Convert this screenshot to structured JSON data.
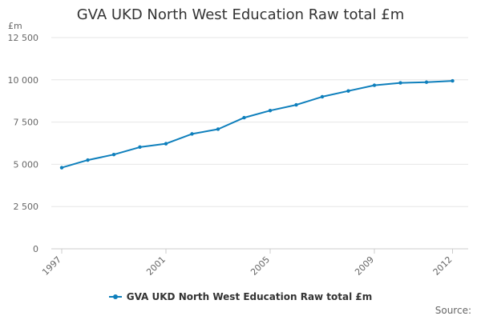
{
  "chart_data": {
    "type": "line",
    "title": "GVA UKD North West Education Raw total £m",
    "ylabel": "£m",
    "xlabel": "",
    "ylim": [
      0,
      12500
    ],
    "yticks": [
      0,
      2500,
      5000,
      7500,
      10000,
      12500
    ],
    "ytick_labels": [
      "0",
      "2 500",
      "5 000",
      "7 500",
      "10 000",
      "12 500"
    ],
    "xtick_labels": [
      "1997",
      "2001",
      "2005",
      "2009",
      "2012"
    ],
    "grid": true,
    "legend_position": "bottom",
    "series": [
      {
        "name": "GVA UKD North West Education Raw total £m",
        "color": "#0e7fbc",
        "x": [
          1997,
          1998,
          1999,
          2000,
          2001,
          2002,
          2003,
          2004,
          2005,
          2006,
          2007,
          2008,
          2009,
          2010,
          2011,
          2012
        ],
        "values": [
          4800,
          5250,
          5580,
          6020,
          6220,
          6800,
          7080,
          7760,
          8180,
          8520,
          9000,
          9340,
          9680,
          9820,
          9860,
          9940
        ]
      }
    ]
  },
  "source_label": "Source:"
}
